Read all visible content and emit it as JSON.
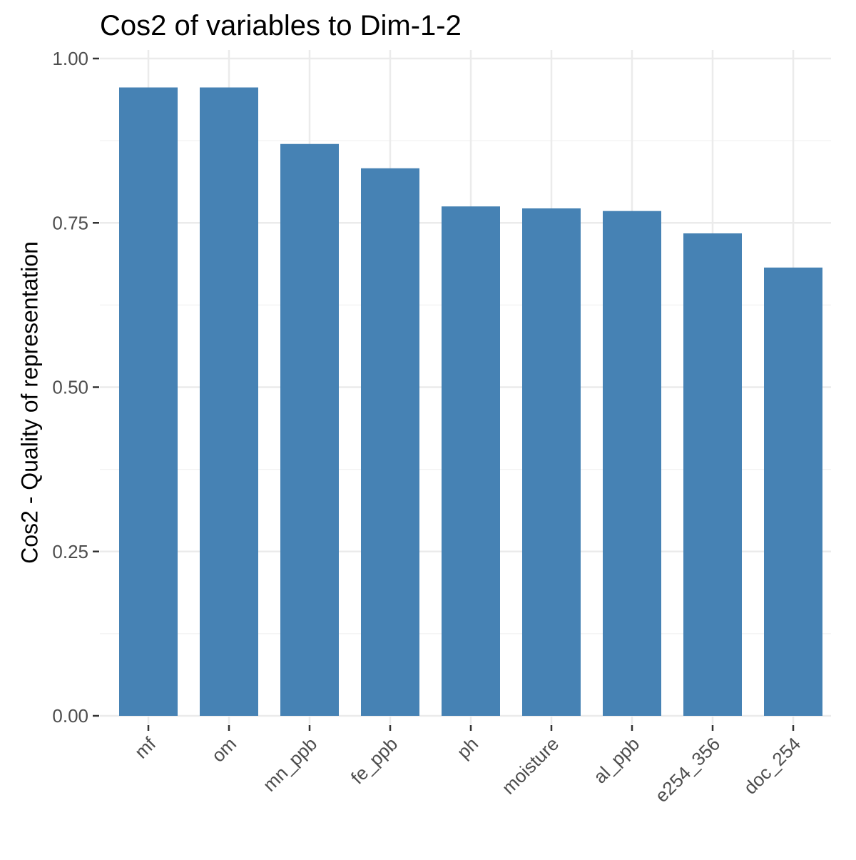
{
  "chart_data": {
    "type": "bar",
    "title": "Cos2 of variables to Dim-1-2",
    "xlabel": "",
    "ylabel": "Cos2 - Quality of representation",
    "categories": [
      "mf",
      "om",
      "mn_ppb",
      "fe_ppb",
      "ph",
      "moisture",
      "al_ppb",
      "e254_356",
      "doc_254"
    ],
    "values": [
      0.956,
      0.956,
      0.87,
      0.833,
      0.775,
      0.772,
      0.768,
      0.734,
      0.682
    ],
    "ylim": [
      0,
      1
    ],
    "yticks": [
      0,
      0.25,
      0.5,
      0.75,
      1
    ],
    "ytick_labels": [
      "0.00",
      "0.25",
      "0.50",
      "0.75",
      "1.00"
    ],
    "bar_color": "#4682B4",
    "grid": true
  }
}
